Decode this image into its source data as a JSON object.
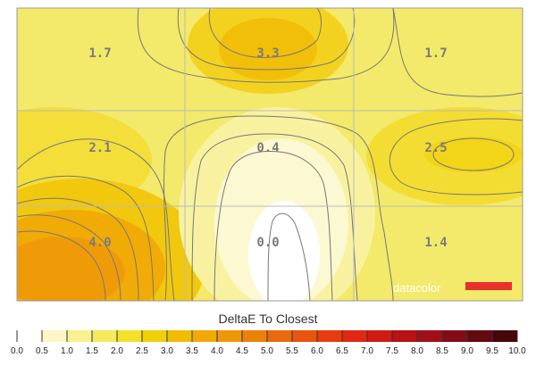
{
  "chart_data": {
    "type": "heatmap",
    "rows": 3,
    "cols": 3,
    "values": [
      [
        1.7,
        3.3,
        1.7
      ],
      [
        2.1,
        0.4,
        2.5
      ],
      [
        4.0,
        0.0,
        1.4
      ]
    ],
    "labels": [
      [
        "1.7",
        "3.3",
        "1.7"
      ],
      [
        "2.1",
        "0.4",
        "2.5"
      ],
      [
        "4.0",
        "0.0",
        "1.4"
      ]
    ],
    "colorbar": {
      "title": "DeltaE To Closest",
      "min": 0,
      "max": 10,
      "ticks": [
        "0.0",
        "0.5",
        "1.0",
        "1.5",
        "2.0",
        "2.5",
        "3.0",
        "3.5",
        "4.0",
        "4.5",
        "5.0",
        "5.5",
        "6.0",
        "6.5",
        "7.0",
        "7.5",
        "8.0",
        "8.5",
        "9.0",
        "9.5",
        "10.0"
      ],
      "colors": [
        "#ffffff",
        "#fcf7c6",
        "#f8f190",
        "#f5ea5c",
        "#f3e12a",
        "#f2d008",
        "#f1bd04",
        "#f1a906",
        "#ee9708",
        "#ec810a",
        "#e96a0c",
        "#e9540e",
        "#e83c10",
        "#e12812",
        "#cf1b14",
        "#b81216",
        "#a0101a",
        "#840c16",
        "#640a10",
        "#44070a"
      ]
    },
    "grid": true
  },
  "watermark": {
    "text": "datacolor",
    "bar_color": "#e8302c"
  }
}
